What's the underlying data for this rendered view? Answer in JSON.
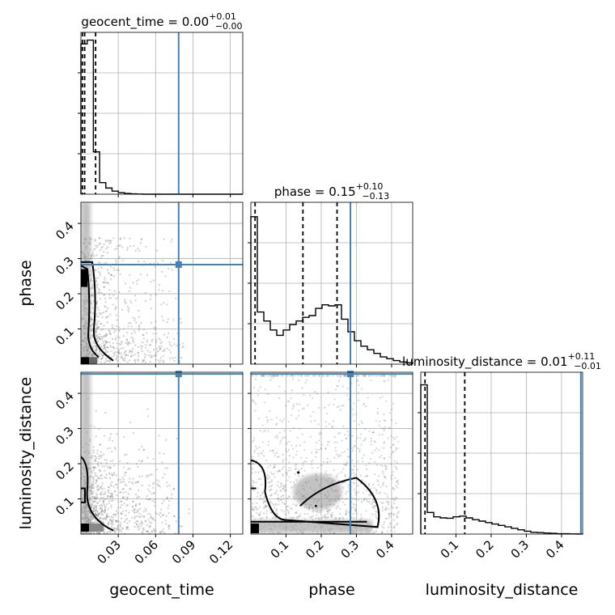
{
  "chart_data": {
    "type": "corner",
    "parameters": [
      "geocent_time",
      "phase",
      "luminosity_distance"
    ],
    "injection": {
      "geocent_time": 0.0785,
      "phase": 0.283,
      "luminosity_distance": 0.455
    },
    "truth_color": "#4682b4",
    "diagonals": [
      {
        "param": "geocent_time",
        "title_prefix": "geocent_time = ",
        "median": "0.00",
        "plus": "+0.01",
        "minus": "−0.00",
        "quantiles": [
          0.0012,
          0.003,
          0.0118
        ],
        "xlim": [
          0,
          0.13
        ],
        "ymax": 0.21,
        "bins": [
          0.0,
          0.005,
          0.01,
          0.015,
          0.02,
          0.025,
          0.03,
          0.035,
          0.04,
          0.045,
          0.05,
          0.055,
          0.06,
          0.065,
          0.07,
          0.075,
          0.08,
          0.085,
          0.09,
          0.095,
          0.1,
          0.105,
          0.11,
          0.115,
          0.12,
          0.125,
          0.13
        ],
        "counts": [
          0.195,
          0.2,
          0.055,
          0.015,
          0.008,
          0.004,
          0.002,
          0.001,
          0.0005,
          0.0002,
          0,
          0,
          0,
          0,
          0,
          0,
          0,
          0,
          0,
          0,
          0,
          0,
          0,
          0,
          0,
          0
        ]
      },
      {
        "param": "phase",
        "title_prefix": "phase = ",
        "median": "0.15",
        "plus": "+0.10",
        "minus": "−0.13",
        "quantiles": [
          0.012,
          0.148,
          0.245
        ],
        "xlim": [
          0,
          0.46
        ],
        "ymax": 0.45,
        "bins": [
          0.0,
          0.0184,
          0.0368,
          0.0552,
          0.0736,
          0.092,
          0.1104,
          0.1288,
          0.1472,
          0.1656,
          0.184,
          0.2024,
          0.2208,
          0.2392,
          0.2576,
          0.276,
          0.2944,
          0.3128,
          0.3312,
          0.3496,
          0.368,
          0.3864,
          0.4048,
          0.4232,
          0.4416,
          0.46
        ],
        "counts": [
          0.41,
          0.145,
          0.12,
          0.095,
          0.08,
          0.095,
          0.11,
          0.12,
          0.13,
          0.135,
          0.155,
          0.165,
          0.162,
          0.165,
          0.125,
          0.09,
          0.065,
          0.05,
          0.04,
          0.03,
          0.02,
          0.015,
          0.01,
          0.006,
          0.004
        ]
      },
      {
        "param": "luminosity_distance",
        "title_prefix": "luminosity_distance = ",
        "median": "0.01",
        "plus": "+0.11",
        "minus": "−0.01",
        "quantiles": [
          0.012,
          0.125
        ],
        "xlim": [
          0,
          0.46
        ],
        "ymax": 0.45,
        "bins": [
          0.0,
          0.0184,
          0.0368,
          0.0552,
          0.0736,
          0.092,
          0.1104,
          0.1288,
          0.1472,
          0.1656,
          0.184,
          0.2024,
          0.2208,
          0.2392,
          0.2576,
          0.276,
          0.2944,
          0.3128,
          0.3312,
          0.3496,
          0.368,
          0.3864,
          0.4048,
          0.4232,
          0.4416,
          0.46
        ],
        "counts": [
          0.415,
          0.06,
          0.048,
          0.045,
          0.044,
          0.048,
          0.05,
          0.045,
          0.04,
          0.036,
          0.032,
          0.028,
          0.024,
          0.02,
          0.016,
          0.012,
          0.008,
          0.005,
          0.004,
          0.003,
          0.002,
          0.001,
          0.001,
          0.0005,
          0.0003
        ]
      }
    ],
    "axis_ticks": {
      "geocent_time": {
        "values": [
          0.03,
          0.06,
          0.09,
          0.12
        ],
        "labels": [
          "0.03",
          "0.06",
          "0.09",
          "0.12"
        ]
      },
      "phase": {
        "values": [
          0.1,
          0.2,
          0.3,
          0.4
        ],
        "labels": [
          "0.1",
          "0.2",
          "0.3",
          "0.4"
        ]
      },
      "luminosity_distance": {
        "values": [
          0.1,
          0.2,
          0.3,
          0.4
        ],
        "labels": [
          "0.1",
          "0.2",
          "0.3",
          "0.4"
        ]
      }
    },
    "panels_2d": [
      {
        "x": "geocent_time",
        "y": "phase",
        "xlim": [
          0,
          0.13
        ],
        "ylim": [
          0,
          0.46
        ]
      },
      {
        "x": "geocent_time",
        "y": "luminosity_distance",
        "xlim": [
          0,
          0.13
        ],
        "ylim": [
          0,
          0.46
        ]
      },
      {
        "x": "phase",
        "y": "luminosity_distance",
        "xlim": [
          0,
          0.46
        ],
        "ylim": [
          0,
          0.46
        ]
      }
    ],
    "grid": true
  }
}
